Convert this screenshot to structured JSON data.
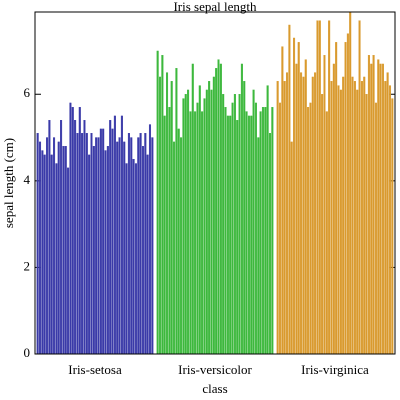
{
  "chart_data": {
    "type": "bar",
    "title": "Iris sepal length",
    "x_label": "class",
    "y_label": "sepal length (cm)",
    "ylim": [
      0,
      7.9
    ],
    "yticks": [
      0,
      2,
      4,
      6
    ],
    "series": [
      {
        "name": "Iris-setosa",
        "color": "#3a3aa8",
        "values": [
          5.1,
          4.9,
          4.7,
          4.6,
          5.0,
          5.4,
          4.6,
          5.0,
          4.4,
          4.9,
          5.4,
          4.8,
          4.8,
          4.3,
          5.8,
          5.7,
          5.4,
          5.1,
          5.7,
          5.1,
          5.4,
          5.1,
          4.6,
          5.1,
          4.8,
          5.0,
          5.0,
          5.2,
          5.2,
          4.7,
          4.8,
          5.4,
          5.2,
          5.5,
          4.9,
          5.0,
          5.5,
          4.9,
          4.4,
          5.1,
          5.0,
          4.5,
          4.4,
          5.0,
          5.1,
          4.8,
          5.1,
          4.6,
          5.3,
          5.0
        ]
      },
      {
        "name": "Iris-versicolor",
        "color": "#3db83d",
        "values": [
          7.0,
          6.4,
          6.9,
          5.5,
          6.5,
          5.7,
          6.3,
          4.9,
          6.6,
          5.2,
          5.0,
          5.9,
          6.0,
          6.1,
          5.6,
          6.7,
          5.6,
          5.8,
          6.2,
          5.6,
          5.9,
          6.1,
          6.3,
          6.1,
          6.4,
          6.6,
          6.8,
          6.7,
          6.0,
          5.7,
          5.5,
          5.5,
          5.8,
          6.0,
          5.4,
          6.0,
          6.7,
          6.3,
          5.6,
          5.5,
          5.5,
          6.1,
          5.8,
          5.0,
          5.6,
          5.7,
          5.7,
          6.2,
          5.1,
          5.7
        ]
      },
      {
        "name": "Iris-virginica",
        "color": "#d99a2e",
        "values": [
          6.3,
          5.8,
          7.1,
          6.3,
          6.5,
          7.6,
          4.9,
          7.3,
          6.7,
          7.2,
          6.5,
          6.4,
          6.8,
          5.7,
          5.8,
          6.4,
          6.5,
          7.7,
          7.7,
          6.0,
          6.9,
          5.6,
          7.7,
          6.3,
          6.7,
          7.2,
          6.2,
          6.1,
          6.4,
          7.2,
          7.4,
          7.9,
          6.4,
          6.3,
          6.1,
          7.7,
          6.3,
          6.4,
          6.0,
          6.9,
          6.7,
          6.9,
          5.8,
          6.8,
          6.7,
          6.7,
          6.3,
          6.5,
          6.2,
          5.9
        ]
      }
    ]
  }
}
